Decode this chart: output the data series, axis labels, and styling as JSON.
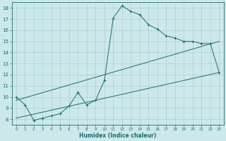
{
  "xlabel": "Humidex (Indice chaleur)",
  "bg_color": "#cce8ea",
  "grid_color": "#aad0d3",
  "line_color": "#1a6e6e",
  "xlim": [
    -0.5,
    23.5
  ],
  "ylim": [
    7.5,
    18.5
  ],
  "xticks": [
    0,
    1,
    2,
    3,
    4,
    5,
    6,
    7,
    8,
    9,
    10,
    11,
    12,
    13,
    14,
    15,
    16,
    17,
    18,
    19,
    20,
    21,
    22,
    23
  ],
  "yticks": [
    8,
    9,
    10,
    11,
    12,
    13,
    14,
    15,
    16,
    17,
    18
  ],
  "line1_x": [
    0,
    1,
    2,
    3,
    4,
    5,
    6,
    7,
    8,
    9,
    10,
    11,
    12,
    13,
    14,
    15,
    16,
    17,
    18,
    19,
    20,
    21,
    22,
    23
  ],
  "line1_y": [
    10.0,
    9.3,
    7.9,
    8.1,
    8.3,
    8.5,
    9.2,
    10.4,
    9.3,
    9.7,
    11.5,
    17.1,
    18.2,
    17.7,
    17.4,
    16.5,
    16.1,
    15.5,
    15.3,
    15.0,
    15.0,
    14.8,
    14.8,
    12.2
  ],
  "line2_x": [
    0,
    23
  ],
  "line2_y": [
    8.1,
    12.2
  ],
  "line3_x": [
    0,
    23
  ],
  "line3_y": [
    9.7,
    15.0
  ]
}
